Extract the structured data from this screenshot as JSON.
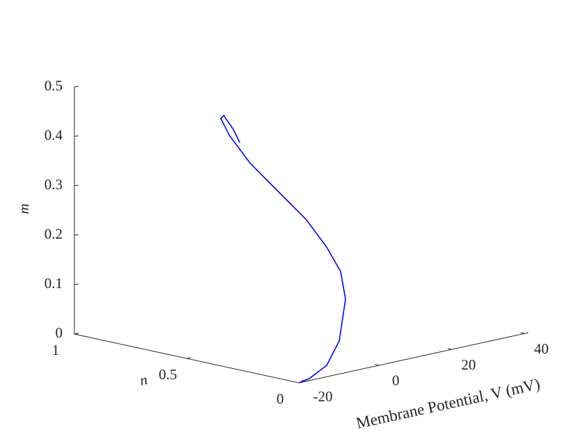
{
  "chart_data": {
    "type": "line3d",
    "xlabel": "Membrane Potential, V (mV)",
    "ylabel": "n",
    "zlabel": "m",
    "color": "#0000ff",
    "x": [
      -22,
      -17.9,
      -11.3,
      -6.0,
      -1.8,
      -1.3,
      -3.3,
      -7.1,
      -12.9,
      -18.7,
      -19.5,
      -20.0,
      -18.0,
      -14.2,
      -11.1
    ],
    "y": [
      0,
      0.02,
      0.05,
      0.08,
      0.12,
      0.15,
      0.18,
      0.21,
      0.24,
      0.27,
      0.35,
      0.38,
      0.4,
      0.42,
      0.44
    ],
    "z": [
      0,
      0,
      0.013,
      0.051,
      0.125,
      0.177,
      0.227,
      0.286,
      0.349,
      0.412,
      0.462,
      0.494,
      0.495,
      0.46,
      0.425
    ],
    "xlim": [
      -22,
      41
    ],
    "xticks": [
      -20,
      0,
      20,
      40
    ],
    "ylim": [
      0,
      1
    ],
    "yticks": [
      0,
      0.5,
      1
    ],
    "zlim": [
      0,
      0.5
    ],
    "zticks": [
      0,
      0.1,
      0.2,
      0.3,
      0.4,
      0.5
    ]
  }
}
